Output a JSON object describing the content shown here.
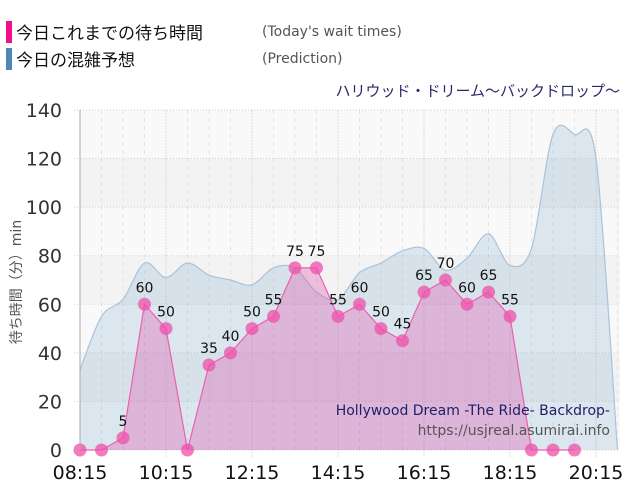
{
  "legend": {
    "items": [
      {
        "label_jp": "今日これまでの待ち時間",
        "label_en": "(Today's wait times)",
        "color": "#ee1189"
      },
      {
        "label_jp": "今日の混雑予想",
        "label_en": "(Prediction)",
        "color": "#4f86b5"
      }
    ]
  },
  "attraction_name": "ハリウッド・ドリーム〜バックドロップ〜",
  "credit": {
    "title_en": "Hollywood Dream -The Ride- Backdrop-",
    "url": "https://usjreal.asumirai.info"
  },
  "chart_data": {
    "type": "area",
    "title": "ハリウッド・ドリーム〜バックドロップ〜",
    "xlabel": "",
    "ylabel": "待ち時間（分）min",
    "ylim": [
      0,
      140
    ],
    "yticks": [
      0,
      20,
      40,
      60,
      80,
      100,
      120,
      140
    ],
    "xticks": [
      "08:15",
      "10:15",
      "12:15",
      "14:15",
      "16:15",
      "18:15",
      "20:15"
    ],
    "grid": true,
    "legend_position": "top-left",
    "series": [
      {
        "name": "今日これまでの待ち時間 (Today's wait times)",
        "color": "#ee1189",
        "x": [
          "08:15",
          "08:45",
          "09:15",
          "09:45",
          "10:15",
          "10:45",
          "11:15",
          "11:45",
          "12:15",
          "12:45",
          "13:15",
          "13:45",
          "14:15",
          "14:45",
          "15:15",
          "15:45",
          "16:15",
          "16:45",
          "17:15",
          "17:45",
          "18:15",
          "18:45",
          "19:15",
          "19:45"
        ],
        "values": [
          0,
          0,
          5,
          60,
          50,
          0,
          35,
          40,
          50,
          55,
          75,
          75,
          55,
          60,
          50,
          45,
          65,
          70,
          60,
          65,
          55,
          0,
          0,
          0
        ]
      },
      {
        "name": "今日の混雑予想 (Prediction)",
        "color": "#4f86b5",
        "x": [
          "08:15",
          "08:45",
          "09:15",
          "09:45",
          "10:15",
          "10:45",
          "11:15",
          "11:45",
          "12:15",
          "12:45",
          "13:15",
          "13:45",
          "14:15",
          "14:45",
          "15:15",
          "15:45",
          "16:15",
          "16:45",
          "17:15",
          "17:45",
          "18:15",
          "18:45",
          "19:15",
          "19:45",
          "20:15",
          "20:45"
        ],
        "values": [
          33,
          55,
          62,
          77,
          71,
          77,
          72,
          70,
          68,
          75,
          75,
          65,
          62,
          73,
          77,
          82,
          83,
          74,
          79,
          89,
          76,
          83,
          130,
          130,
          120,
          0
        ]
      }
    ]
  }
}
